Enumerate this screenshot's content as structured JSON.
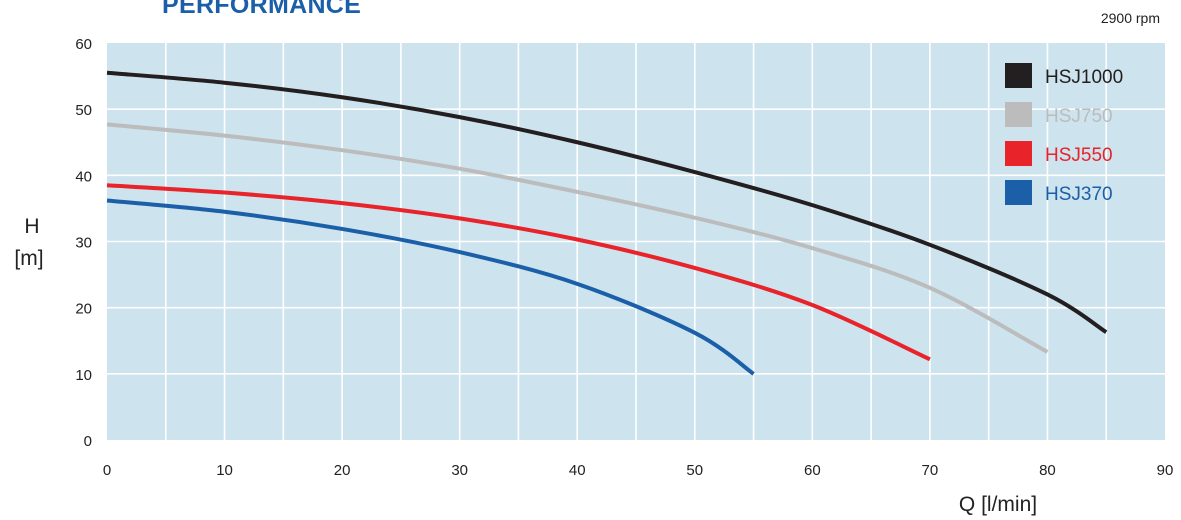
{
  "header": {
    "title": "PERFORMANCE",
    "speed": "2900 rpm"
  },
  "chart_data": {
    "type": "line",
    "title": "PERFORMANCE",
    "xlabel": "Q [l/min]",
    "ylabel_line1": "H",
    "ylabel_line2": "[m]",
    "xlim": [
      0,
      90
    ],
    "ylim": [
      0,
      60
    ],
    "x_ticks": [
      "0",
      "10",
      "20",
      "30",
      "40",
      "50",
      "60",
      "70",
      "80",
      "90"
    ],
    "y_ticks": [
      "0",
      "10",
      "20",
      "30",
      "40",
      "50",
      "60"
    ],
    "grid": true,
    "plot_background": "#cde3ee",
    "legend_position": "top-right",
    "series": [
      {
        "name": "HSJ1000",
        "color": "#231f20",
        "x": [
          0,
          10,
          20,
          30,
          40,
          50,
          60,
          70,
          80,
          85
        ],
        "y": [
          55.5,
          54,
          51.8,
          48.8,
          45,
          40.5,
          35.5,
          29.5,
          22,
          16.3
        ]
      },
      {
        "name": "HSJ750",
        "color": "#bcbcbc",
        "x": [
          0,
          10,
          20,
          30,
          40,
          50,
          60,
          70,
          80
        ],
        "y": [
          47.7,
          46,
          43.8,
          41,
          37.5,
          33.6,
          29,
          23,
          13.3
        ]
      },
      {
        "name": "HSJ550",
        "color": "#e8232a",
        "x": [
          0,
          10,
          20,
          30,
          40,
          50,
          60,
          70
        ],
        "y": [
          38.5,
          37.4,
          35.8,
          33.5,
          30.3,
          26,
          20.4,
          12.2
        ]
      },
      {
        "name": "HSJ370",
        "color": "#1a5fa8",
        "x": [
          0,
          10,
          20,
          30,
          40,
          50,
          55
        ],
        "y": [
          36.2,
          34.5,
          31.9,
          28.4,
          23.6,
          16.2,
          10
        ]
      }
    ]
  }
}
